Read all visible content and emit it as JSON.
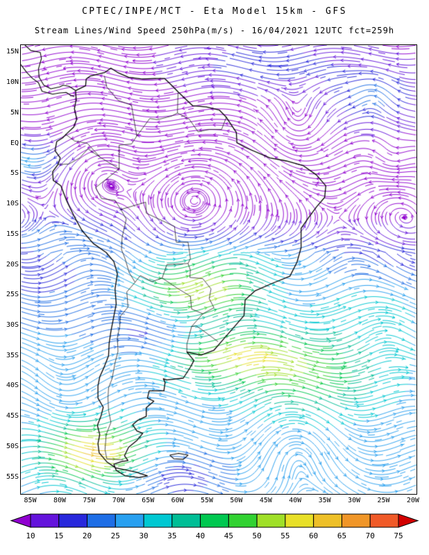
{
  "chart_data": {
    "type": "heatmap",
    "subtype": "streamlines_wind_speed_map",
    "title": "CPTEC/INPE/MCT - Eta Model 15km - GFS",
    "subtitle": "Stream Lines/Wind Speed 250hPa(m/s) - 16/04/2021 12UTC fct=259h",
    "institution": "CPTEC/INPE/MCT",
    "model": "Eta Model 15km",
    "driver_model": "GFS",
    "variable": "Stream Lines/Wind Speed",
    "level": "250hPa",
    "units": "m/s",
    "valid_date": "16/04/2021",
    "cycle": "12UTC",
    "forecast": "fct=259h",
    "x_axis": {
      "label": "longitude",
      "ticks": [
        "85W",
        "80W",
        "75W",
        "70W",
        "65W",
        "60W",
        "55W",
        "50W",
        "45W",
        "40W",
        "35W",
        "30W",
        "25W",
        "20W"
      ]
    },
    "y_axis": {
      "label": "latitude",
      "ticks": [
        "15N",
        "10N",
        "5N",
        "EQ",
        "5S",
        "10S",
        "15S",
        "20S",
        "25S",
        "30S",
        "35S",
        "40S",
        "45S",
        "50S",
        "55S"
      ]
    },
    "legend": {
      "position": "bottom",
      "units": "m/s",
      "levels": [
        10,
        15,
        20,
        25,
        30,
        35,
        40,
        45,
        50,
        55,
        60,
        65,
        70,
        75
      ],
      "colors": [
        "#9000D0",
        "#6414DC",
        "#2828DC",
        "#1E6EE6",
        "#28A0F0",
        "#00C8D2",
        "#00BE96",
        "#00C850",
        "#32D232",
        "#A0E028",
        "#E8E028",
        "#EEC028",
        "#F09628",
        "#F05A28",
        "#D20000"
      ]
    }
  }
}
